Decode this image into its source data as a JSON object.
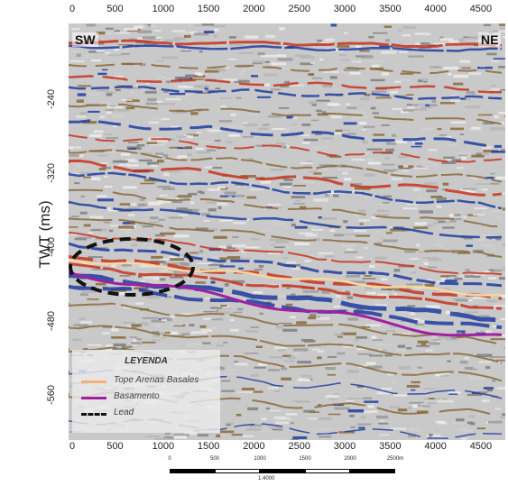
{
  "x_axis": {
    "ticks": [
      "0",
      "500",
      "1000",
      "1500",
      "2000",
      "2500",
      "3000",
      "3500",
      "4000",
      "4500"
    ]
  },
  "y_axis": {
    "label": "TWT (ms)",
    "ticks": [
      "-240",
      "-320",
      "-400",
      "-480",
      "-560"
    ]
  },
  "corners": {
    "left": "SW",
    "right": "NE"
  },
  "legend": {
    "title": "LEYENDA",
    "items": [
      {
        "label": "Tope Arenas Basales",
        "color": "#f5b07a"
      },
      {
        "label": "Basamento",
        "color": "#a020a0"
      },
      {
        "label": "Lead",
        "color": "#111111"
      }
    ]
  },
  "scale_bar": {
    "labels": [
      "0",
      "500",
      "1000",
      "1500",
      "2000",
      "2500m"
    ],
    "ratio": "1:4000"
  },
  "colors": {
    "peak": "#c8321e",
    "trough": "#1e3ca0",
    "tan": "#8a6a3a",
    "tope": "#f5d7a0",
    "basamento": "#a020a0"
  }
}
